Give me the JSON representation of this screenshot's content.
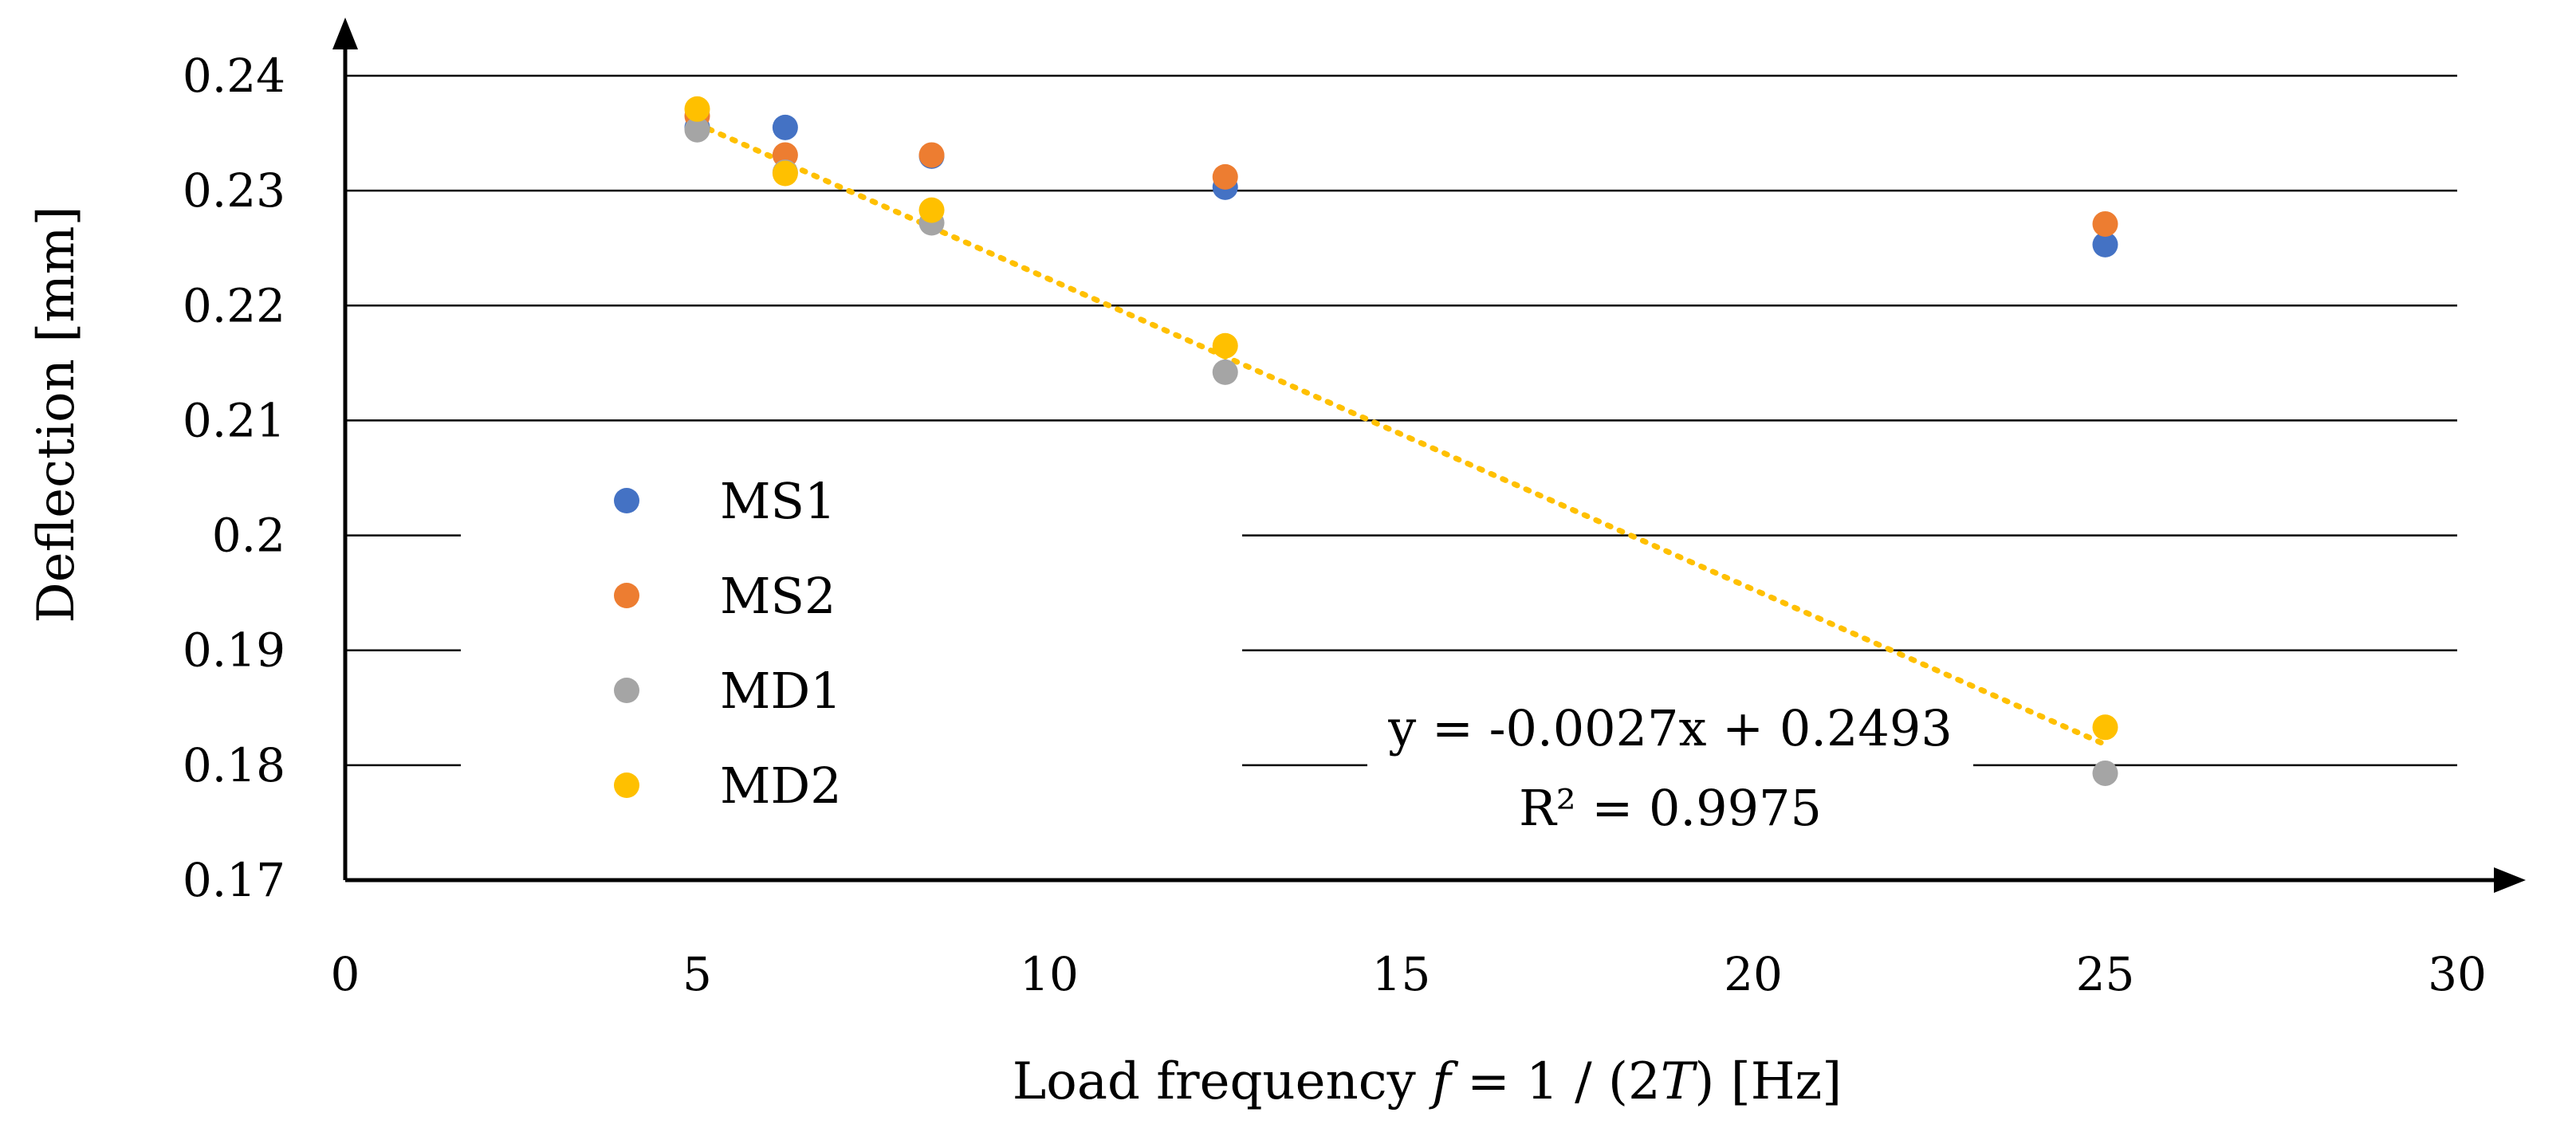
{
  "chart_data": {
    "type": "scatter",
    "title": "",
    "xlabel_parts": [
      "Load frequency ",
      "f",
      "  = 1 / (2",
      "T",
      ") [Hz]"
    ],
    "ylabel": "Deflection [mm]",
    "xlim": [
      0,
      30
    ],
    "ylim": [
      0.17,
      0.24
    ],
    "xticks": [
      0,
      5,
      10,
      15,
      20,
      25,
      30
    ],
    "xtick_labels": [
      "0",
      "5",
      "10",
      "15",
      "20",
      "25",
      "30"
    ],
    "yticks": [
      0.17,
      0.18,
      0.19,
      0.2,
      0.21,
      0.22,
      0.23,
      0.24
    ],
    "ytick_labels": [
      "0.17",
      "0.18",
      "0.19",
      "0.2",
      "0.21",
      "0.22",
      "0.23",
      "0.24"
    ],
    "grid": "horizontal",
    "legend_position": "center-left",
    "series": [
      {
        "name": "MS1",
        "color": "#4472C4",
        "x": [
          5,
          6.25,
          8.33,
          12.5,
          25
        ],
        "y": [
          0.2355,
          0.2355,
          0.233,
          0.2303,
          0.2253
        ]
      },
      {
        "name": "MS2",
        "color": "#ED7D31",
        "x": [
          5,
          6.25,
          8.33,
          12.5,
          25
        ],
        "y": [
          0.2365,
          0.2331,
          0.2331,
          0.2312,
          0.2271
        ]
      },
      {
        "name": "MD1",
        "color": "#A5A5A5",
        "x": [
          5,
          6.25,
          8.33,
          12.5,
          25
        ],
        "y": [
          0.2353,
          0.2316,
          0.2272,
          0.2142,
          0.1793
        ]
      },
      {
        "name": "MD2",
        "color": "#FFC000",
        "x": [
          5,
          6.25,
          8.33,
          12.5,
          25
        ],
        "y": [
          0.2371,
          0.2315,
          0.2283,
          0.2165,
          0.1833
        ]
      }
    ],
    "trendline": {
      "series": "MD2",
      "color": "#FFC000",
      "slope": -0.0027,
      "intercept": 0.2493,
      "x_range": [
        5,
        25
      ],
      "equation": "y = -0.0027x + 0.2493",
      "r_squared": "R² = 0.9975"
    }
  }
}
